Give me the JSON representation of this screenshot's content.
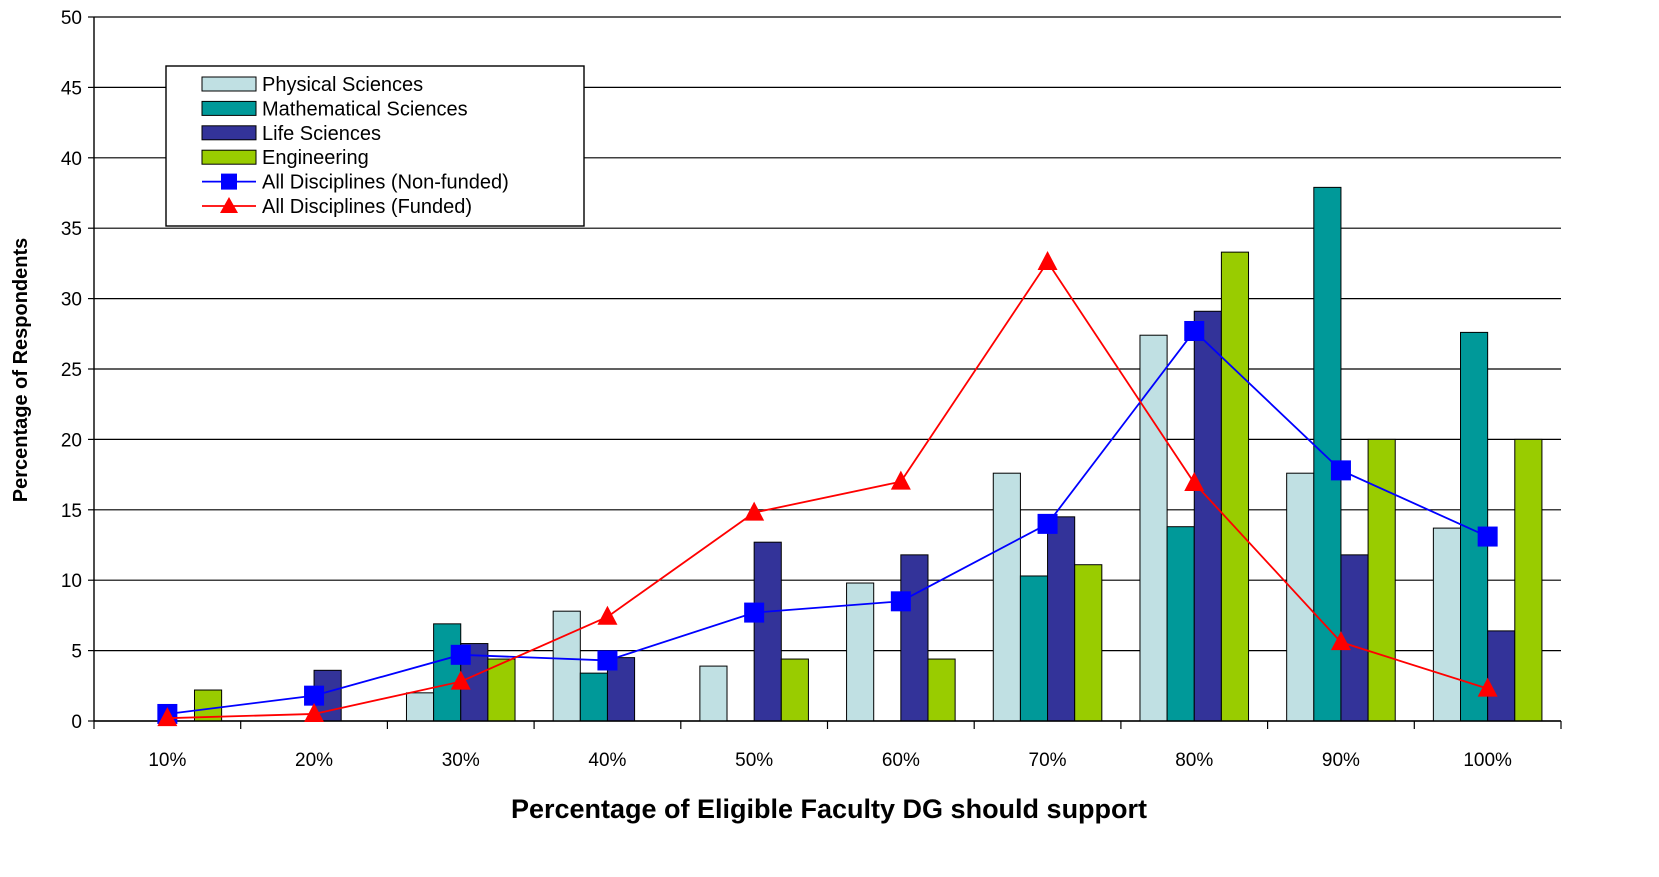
{
  "chart_data": {
    "type": "bar",
    "title": "",
    "xlabel": "Percentage of Eligible Faculty DG should support",
    "ylabel": "Percentage of Respondents",
    "ylim": [
      0,
      50
    ],
    "yticks": [
      0,
      5,
      10,
      15,
      20,
      25,
      30,
      35,
      40,
      45,
      50
    ],
    "grid": "horizontal",
    "legend_position": "top-left",
    "categories": [
      "10%",
      "20%",
      "30%",
      "40%",
      "50%",
      "60%",
      "70%",
      "80%",
      "90%",
      "100%"
    ],
    "series": [
      {
        "name": "Physical Sciences",
        "kind": "bar",
        "color": "#c0e0e3",
        "values": [
          0,
          0,
          2.0,
          7.8,
          3.9,
          9.8,
          17.6,
          27.4,
          17.6,
          13.7
        ]
      },
      {
        "name": "Mathematical Sciences",
        "kind": "bar",
        "color": "#009999",
        "values": [
          0,
          0,
          6.9,
          3.4,
          0,
          0,
          10.3,
          13.8,
          37.9,
          27.6
        ]
      },
      {
        "name": "Life Sciences",
        "kind": "bar",
        "color": "#333399",
        "values": [
          0,
          3.6,
          5.5,
          4.5,
          12.7,
          11.8,
          14.5,
          29.1,
          11.8,
          6.4
        ]
      },
      {
        "name": "Engineering",
        "kind": "bar",
        "color": "#99cc00",
        "values": [
          2.2,
          0,
          4.4,
          0,
          4.4,
          4.4,
          11.1,
          33.3,
          20.0,
          20.0
        ]
      },
      {
        "name": "All Disciplines (Non-funded)",
        "kind": "line",
        "marker": "square",
        "color": "#0000ff",
        "values": [
          0.5,
          1.8,
          4.7,
          4.3,
          7.7,
          8.5,
          14.0,
          27.7,
          17.8,
          13.1
        ]
      },
      {
        "name": "All Disciplines (Funded)",
        "kind": "line",
        "marker": "triangle",
        "color": "#ff0000",
        "values": [
          0.2,
          0.5,
          2.8,
          7.4,
          14.8,
          17.0,
          32.6,
          16.9,
          5.6,
          2.3
        ]
      }
    ]
  }
}
